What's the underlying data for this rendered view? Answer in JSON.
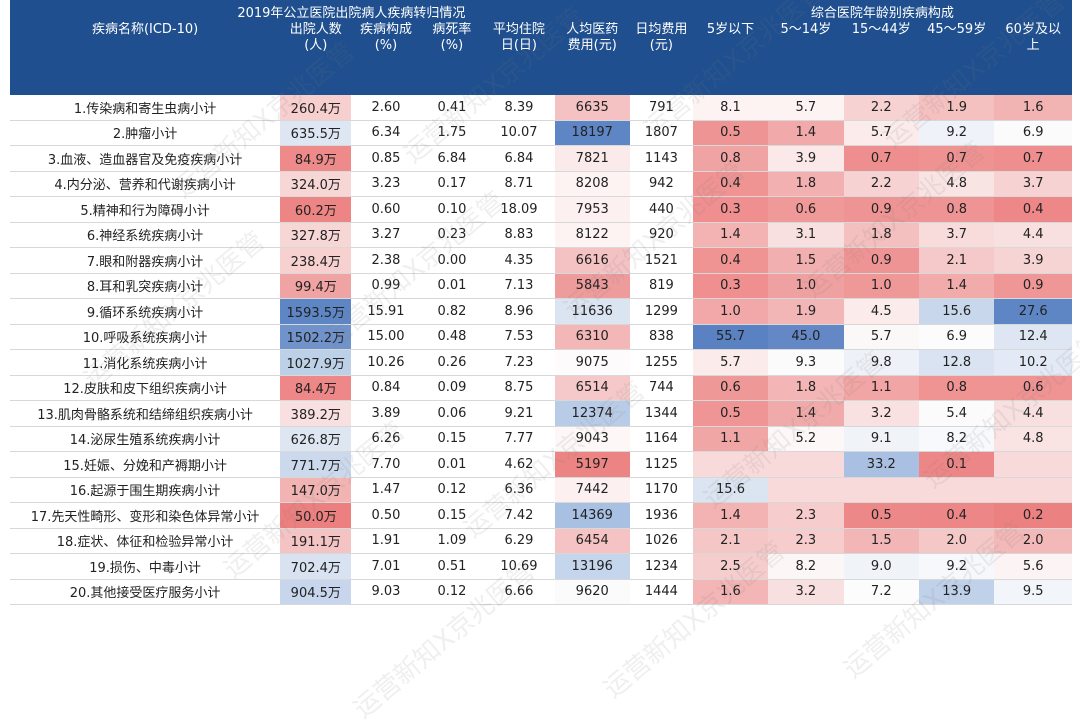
{
  "title": "2019年公立医院出院病人疾病转归情况",
  "age_group_title": "综合医院年龄别疾病构成",
  "columns": [
    {
      "key": "name",
      "label": "疾病名称(ICD-10)",
      "sub": ""
    },
    {
      "key": "discharges",
      "label": "出院人数",
      "sub": "(人)"
    },
    {
      "key": "composition",
      "label": "疾病构成",
      "sub": "(%)"
    },
    {
      "key": "mortality",
      "label": "病死率",
      "sub": "(%)"
    },
    {
      "key": "avg_stay",
      "label": "平均住院",
      "sub": "日(日)"
    },
    {
      "key": "cost_per_patient",
      "label": "人均医药",
      "sub": "费用(元)"
    },
    {
      "key": "daily_cost",
      "label": "日均费用",
      "sub": "(元)"
    },
    {
      "key": "age_0_4",
      "label": "5岁以下",
      "sub": ""
    },
    {
      "key": "age_5_14",
      "label": "5～14岁",
      "sub": ""
    },
    {
      "key": "age_15_44",
      "label": "15～44岁",
      "sub": ""
    },
    {
      "key": "age_45_59",
      "label": "45～59岁",
      "sub": ""
    },
    {
      "key": "age_60_plus",
      "label": "60岁及以",
      "sub": "上"
    }
  ],
  "rows": [
    {
      "name": "1.传染病和寄生虫病小计",
      "discharges": "260.4万",
      "composition": "2.60",
      "mortality": "0.41",
      "avg_stay": "8.39",
      "cost_per_patient": "6635",
      "daily_cost": "791",
      "age_0_4": "8.1",
      "age_5_14": "5.7",
      "age_15_44": "2.2",
      "age_45_59": "1.9",
      "age_60_plus": "1.6"
    },
    {
      "name": "2.肿瘤小计",
      "discharges": "635.5万",
      "composition": "6.34",
      "mortality": "1.75",
      "avg_stay": "10.07",
      "cost_per_patient": "18197",
      "daily_cost": "1807",
      "age_0_4": "0.5",
      "age_5_14": "1.4",
      "age_15_44": "5.7",
      "age_45_59": "9.2",
      "age_60_plus": "6.9"
    },
    {
      "name": "3.血液、造血器官及免疫疾病小计",
      "discharges": "84.9万",
      "composition": "0.85",
      "mortality": "6.84",
      "avg_stay": "6.84",
      "cost_per_patient": "7821",
      "daily_cost": "1143",
      "age_0_4": "0.8",
      "age_5_14": "3.9",
      "age_15_44": "0.7",
      "age_45_59": "0.7",
      "age_60_plus": "0.7"
    },
    {
      "name": "4.内分泌、营养和代谢疾病小计",
      "discharges": "324.0万",
      "composition": "3.23",
      "mortality": "0.17",
      "avg_stay": "8.71",
      "cost_per_patient": "8208",
      "daily_cost": "942",
      "age_0_4": "0.4",
      "age_5_14": "1.8",
      "age_15_44": "2.2",
      "age_45_59": "4.8",
      "age_60_plus": "3.7"
    },
    {
      "name": "5.精神和行为障碍小计",
      "discharges": "60.2万",
      "composition": "0.60",
      "mortality": "0.10",
      "avg_stay": "18.09",
      "cost_per_patient": "7953",
      "daily_cost": "440",
      "age_0_4": "0.3",
      "age_5_14": "0.6",
      "age_15_44": "0.9",
      "age_45_59": "0.8",
      "age_60_plus": "0.4"
    },
    {
      "name": "6.神经系统疾病小计",
      "discharges": "327.8万",
      "composition": "3.27",
      "mortality": "0.23",
      "avg_stay": "8.83",
      "cost_per_patient": "8122",
      "daily_cost": "920",
      "age_0_4": "1.4",
      "age_5_14": "3.1",
      "age_15_44": "1.8",
      "age_45_59": "3.7",
      "age_60_plus": "4.4"
    },
    {
      "name": "7.眼和附器疾病小计",
      "discharges": "238.4万",
      "composition": "2.38",
      "mortality": "0.00",
      "avg_stay": "4.35",
      "cost_per_patient": "6616",
      "daily_cost": "1521",
      "age_0_4": "0.4",
      "age_5_14": "1.5",
      "age_15_44": "0.9",
      "age_45_59": "2.1",
      "age_60_plus": "3.9"
    },
    {
      "name": "8.耳和乳突疾病小计",
      "discharges": "99.4万",
      "composition": "0.99",
      "mortality": "0.01",
      "avg_stay": "7.13",
      "cost_per_patient": "5843",
      "daily_cost": "819",
      "age_0_4": "0.3",
      "age_5_14": "1.0",
      "age_15_44": "1.0",
      "age_45_59": "1.4",
      "age_60_plus": "0.9"
    },
    {
      "name": "9.循环系统疾病小计",
      "discharges": "1593.5万",
      "composition": "15.91",
      "mortality": "0.82",
      "avg_stay": "8.96",
      "cost_per_patient": "11636",
      "daily_cost": "1299",
      "age_0_4": "1.0",
      "age_5_14": "1.9",
      "age_15_44": "4.5",
      "age_45_59": "15.6",
      "age_60_plus": "27.6"
    },
    {
      "name": "10.呼吸系统疾病小计",
      "discharges": "1502.2万",
      "composition": "15.00",
      "mortality": "0.48",
      "avg_stay": "7.53",
      "cost_per_patient": "6310",
      "daily_cost": "838",
      "age_0_4": "55.7",
      "age_5_14": "45.0",
      "age_15_44": "5.7",
      "age_45_59": "6.9",
      "age_60_plus": "12.4"
    },
    {
      "name": "11.消化系统疾病小计",
      "discharges": "1027.9万",
      "composition": "10.26",
      "mortality": "0.26",
      "avg_stay": "7.23",
      "cost_per_patient": "9075",
      "daily_cost": "1255",
      "age_0_4": "5.7",
      "age_5_14": "9.3",
      "age_15_44": "9.8",
      "age_45_59": "12.8",
      "age_60_plus": "10.2"
    },
    {
      "name": "12.皮肤和皮下组织疾病小计",
      "discharges": "84.4万",
      "composition": "0.84",
      "mortality": "0.09",
      "avg_stay": "8.75",
      "cost_per_patient": "6514",
      "daily_cost": "744",
      "age_0_4": "0.6",
      "age_5_14": "1.8",
      "age_15_44": "1.1",
      "age_45_59": "0.8",
      "age_60_plus": "0.6"
    },
    {
      "name": "13.肌肉骨骼系统和结缔组织疾病小计",
      "discharges": "389.2万",
      "composition": "3.89",
      "mortality": "0.06",
      "avg_stay": "9.21",
      "cost_per_patient": "12374",
      "daily_cost": "1344",
      "age_0_4": "0.5",
      "age_5_14": "1.4",
      "age_15_44": "3.2",
      "age_45_59": "5.4",
      "age_60_plus": "4.4"
    },
    {
      "name": "14.泌尿生殖系统疾病小计",
      "discharges": "626.8万",
      "composition": "6.26",
      "mortality": "0.15",
      "avg_stay": "7.77",
      "cost_per_patient": "9043",
      "daily_cost": "1164",
      "age_0_4": "1.1",
      "age_5_14": "5.2",
      "age_15_44": "9.1",
      "age_45_59": "8.2",
      "age_60_plus": "4.8"
    },
    {
      "name": "15.妊娠、分娩和产褥期小计",
      "discharges": "771.7万",
      "composition": "7.70",
      "mortality": "0.01",
      "avg_stay": "4.62",
      "cost_per_patient": "5197",
      "daily_cost": "1125",
      "age_0_4": "",
      "age_5_14": "",
      "age_15_44": "33.2",
      "age_45_59": "0.1",
      "age_60_plus": ""
    },
    {
      "name": "16.起源于围生期疾病小计",
      "discharges": "147.0万",
      "composition": "1.47",
      "mortality": "0.12",
      "avg_stay": "6.36",
      "cost_per_patient": "7442",
      "daily_cost": "1170",
      "age_0_4": "15.6",
      "age_5_14": "",
      "age_15_44": "",
      "age_45_59": "",
      "age_60_plus": ""
    },
    {
      "name": "17.先天性畸形、变形和染色体异常小计",
      "discharges": "50.0万",
      "composition": "0.50",
      "mortality": "0.15",
      "avg_stay": "7.42",
      "cost_per_patient": "14369",
      "daily_cost": "1936",
      "age_0_4": "1.4",
      "age_5_14": "2.3",
      "age_15_44": "0.5",
      "age_45_59": "0.4",
      "age_60_plus": "0.2"
    },
    {
      "name": "18.症状、体征和检验异常小计",
      "discharges": "191.1万",
      "composition": "1.91",
      "mortality": "1.09",
      "avg_stay": "6.29",
      "cost_per_patient": "6454",
      "daily_cost": "1026",
      "age_0_4": "2.1",
      "age_5_14": "2.3",
      "age_15_44": "1.5",
      "age_45_59": "2.0",
      "age_60_plus": "2.0"
    },
    {
      "name": "19.损伤、中毒小计",
      "discharges": "702.4万",
      "composition": "7.01",
      "mortality": "0.51",
      "avg_stay": "10.69",
      "cost_per_patient": "13196",
      "daily_cost": "1234",
      "age_0_4": "2.5",
      "age_5_14": "8.2",
      "age_15_44": "9.0",
      "age_45_59": "9.2",
      "age_60_plus": "5.6"
    },
    {
      "name": "20.其他接受医疗服务小计",
      "discharges": "904.5万",
      "composition": "9.03",
      "mortality": "0.12",
      "avg_stay": "6.66",
      "cost_per_patient": "9620",
      "daily_cost": "1444",
      "age_0_4": "1.6",
      "age_5_14": "3.2",
      "age_15_44": "7.2",
      "age_45_59": "13.9",
      "age_60_plus": "9.5"
    }
  ],
  "cell_colors": {
    "discharges": [
      "#f7cfcf",
      "#dde6f2",
      "#ee8a8a",
      "#f7d6d6",
      "#ee8585",
      "#f7d6d6",
      "#f7d0d0",
      "#f0a3a3",
      "#5e86c4",
      "#6f93ca",
      "#bcd0e8",
      "#ee8787",
      "#f8e0e0",
      "#dee6f2",
      "#ccd9ed",
      "#f2b3b3",
      "#ec7f7f",
      "#f4c3c3",
      "#d8e2f1",
      "#c7d6ec"
    ],
    "cost_per_patient": [
      "#f4c2c2",
      "#5e86c4",
      "#fbeaea",
      "#fdf3f3",
      "#fcf0f0",
      "#fdf3f3",
      "#f4c2c2",
      "#ee9b9b",
      "#dbe4f1",
      "#f3b7b7",
      "#fdfbfb",
      "#f5c9c9",
      "#b9cce7",
      "#fdf7f7",
      "#ec8484",
      "#fcf0f0",
      "#a8c0e2",
      "#f5c3c3",
      "#c5d5eb",
      "#fcfbfb"
    ],
    "age_0_4": [
      "#fdf3f3",
      "#ef9494",
      "#f0a3a3",
      "#ef9393",
      "#ef8f8f",
      "#f3b3b3",
      "#ef9393",
      "#ef8f8f",
      "#f2a8a8",
      "#5a82c3",
      "#fbebeb",
      "#ef9898",
      "#ef9595",
      "#f1a6a6",
      "#f8dada",
      "#dbe4f1",
      "#f3b3b3",
      "#f5c6c6",
      "#f6cdcd",
      "#f3b5b5"
    ],
    "age_5_14": [
      "#fdf3f3",
      "#f1a9a9",
      "#fbe9e9",
      "#f2b0b0",
      "#ef9999",
      "#f9e0e0",
      "#f2afaf",
      "#efa0a0",
      "#f3b6b6",
      "#6388c5",
      "#fbfbfb",
      "#f3b5b5",
      "#f1aaaa",
      "#fdf7f7",
      "#f8dada",
      "#f8dada",
      "#f6cccc",
      "#f6cccc",
      "#fdf6f6",
      "#f8e0e0"
    ],
    "age_15_44": [
      "#f7d2d2",
      "#fbebeb",
      "#ee8e8e",
      "#f7d2d2",
      "#ef9494",
      "#f4bfbf",
      "#ef9494",
      "#ef9898",
      "#fbebeb",
      "#fbf8f8",
      "#eef2f8",
      "#f1a5a5",
      "#f9e1e1",
      "#f0f4f9",
      "#a9c0e2",
      "#f8dada",
      "#ed8888",
      "#f3b6b6",
      "#f0f4f9",
      "#fcfcfc"
    ],
    "age_45_59": [
      "#f4c0c0",
      "#eff3f9",
      "#ef9292",
      "#f9e4e4",
      "#ef9494",
      "#f8dcdc",
      "#f5c9c9",
      "#f1abab",
      "#c8d7ec",
      "#fcfcfc",
      "#d9e3f1",
      "#ef9393",
      "#fcfbfb",
      "#f7f9fc",
      "#ed8686",
      "#f8dada",
      "#ed8787",
      "#f5c8c8",
      "#f6f8fb",
      "#c0d1ea"
    ],
    "age_60_plus": [
      "#f2b3b3",
      "#fbfbfb",
      "#ee8e8e",
      "#f6d2d2",
      "#ee8888",
      "#f8e0e0",
      "#f6d4d4",
      "#ef9797",
      "#5e86c4",
      "#dde6f2",
      "#e3eaf5",
      "#ef9393",
      "#f8e0e0",
      "#f9e3e3",
      "#f8dada",
      "#f8dada",
      "#ec8181",
      "#f3b8b8",
      "#fcf4f4",
      "#f2f5fa"
    ]
  },
  "header_color": "#1f4f8e",
  "watermark": "运营新知X京兆医管"
}
